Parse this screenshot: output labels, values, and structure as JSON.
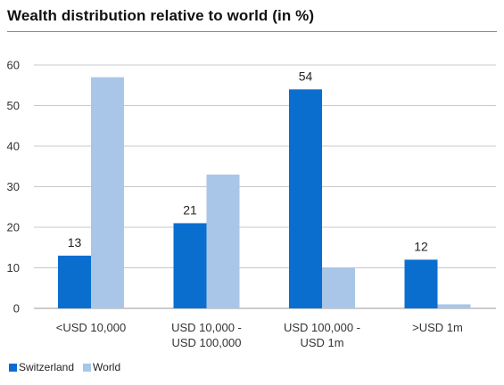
{
  "chart_data": {
    "type": "bar",
    "title": "Wealth distribution relative to world (in %)",
    "categories": [
      [
        "<USD 10,000"
      ],
      [
        "USD 10,000 -",
        "USD 100,000"
      ],
      [
        "USD 100,000 -",
        "USD 1m"
      ],
      [
        ">USD 1m"
      ]
    ],
    "series": [
      {
        "name": "Switzerland",
        "values": [
          13,
          21,
          54,
          12
        ],
        "color": "#0a6ecf",
        "labels": [
          "13",
          "21",
          "54",
          "12"
        ]
      },
      {
        "name": "World",
        "values": [
          57,
          33,
          10,
          1
        ],
        "color": "#a9c6e8"
      }
    ],
    "ylim": [
      0,
      60
    ],
    "yticks": [
      0,
      10,
      20,
      30,
      40,
      50,
      60
    ],
    "grid": true,
    "legend_position": "bottom-left"
  }
}
